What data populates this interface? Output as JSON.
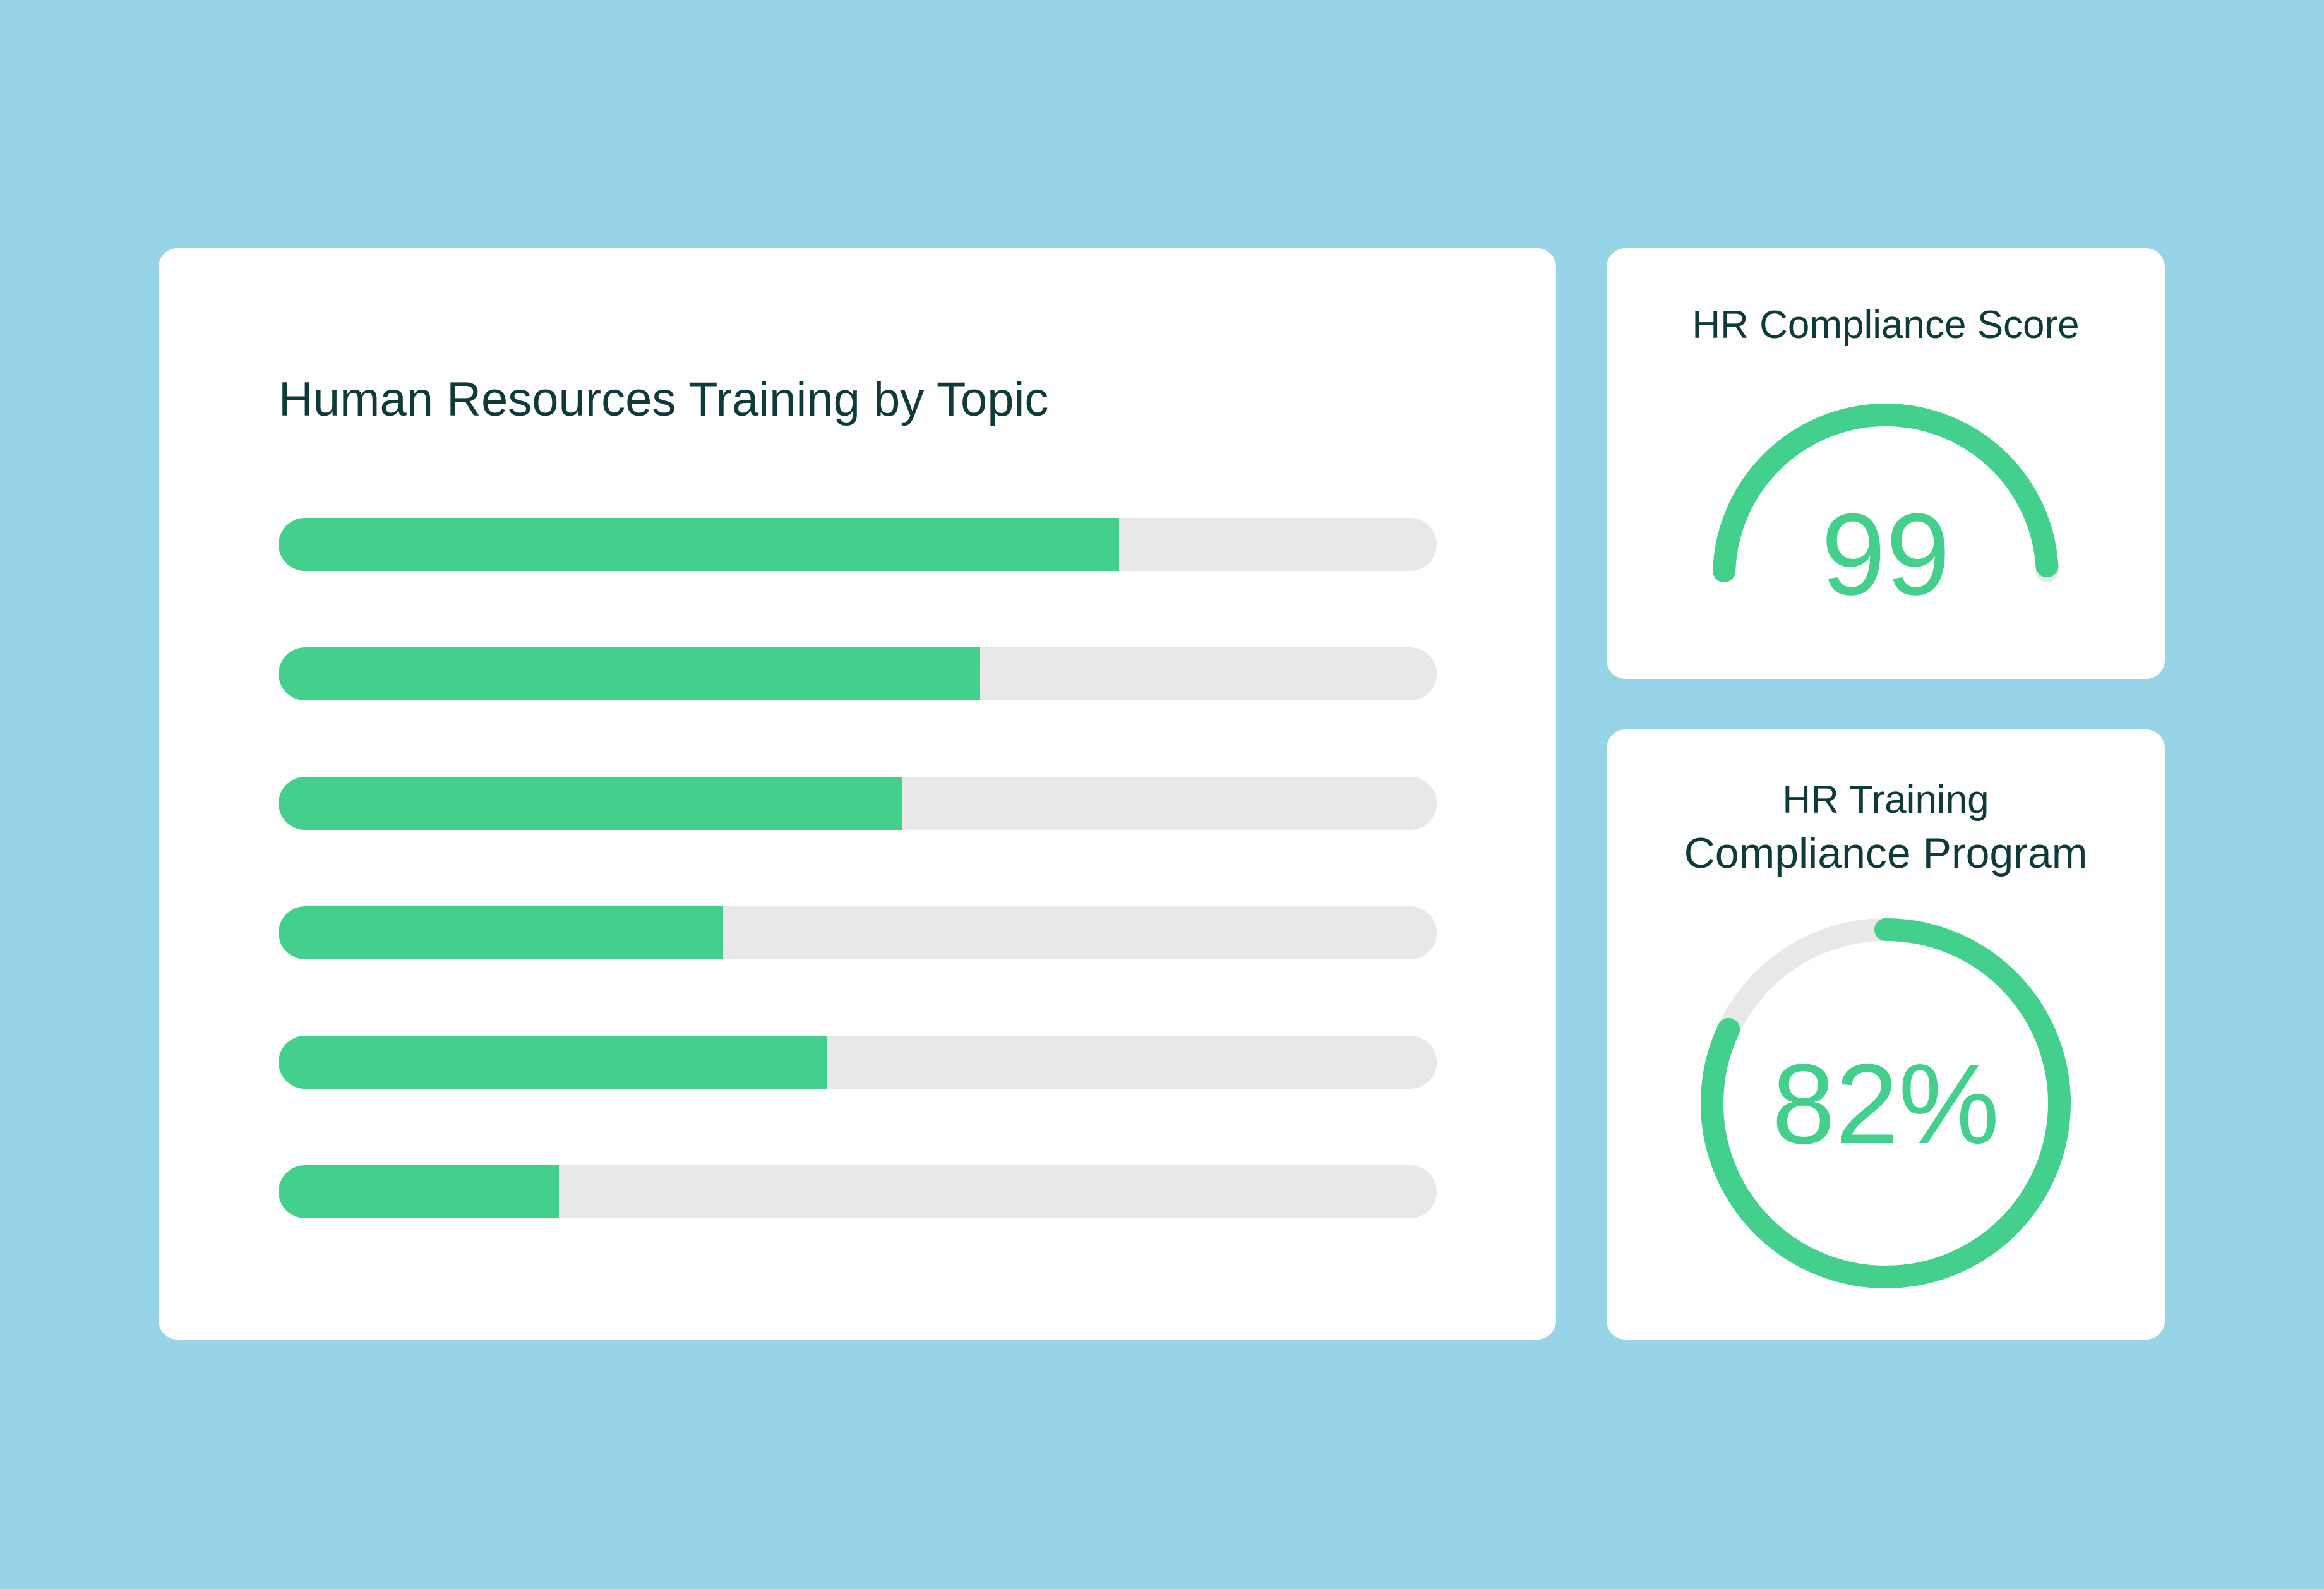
{
  "colors": {
    "background": "#98d4e8",
    "card": "#ffffff",
    "title_text": "#0f3a3a",
    "accent_green": "#42d08c",
    "track_gray": "#e8e8e8"
  },
  "chart_data": [
    {
      "type": "bar",
      "orientation": "horizontal",
      "title": "Human Resources Training by Topic",
      "categories": [
        "",
        "",
        "",
        "",
        "",
        ""
      ],
      "values": [
        0.726,
        0.606,
        0.538,
        0.384,
        0.474,
        0.242
      ],
      "xlim": [
        0,
        1
      ],
      "grid": false,
      "legend": "none"
    },
    {
      "type": "gauge",
      "title": "HR Compliance Score",
      "value": 99,
      "display_value": "99",
      "range": [
        0,
        100
      ]
    },
    {
      "type": "donut",
      "title_lines": [
        "HR Training",
        "Compliance Program"
      ],
      "value": 82,
      "display_value": "82%",
      "range": [
        0,
        100
      ]
    }
  ]
}
